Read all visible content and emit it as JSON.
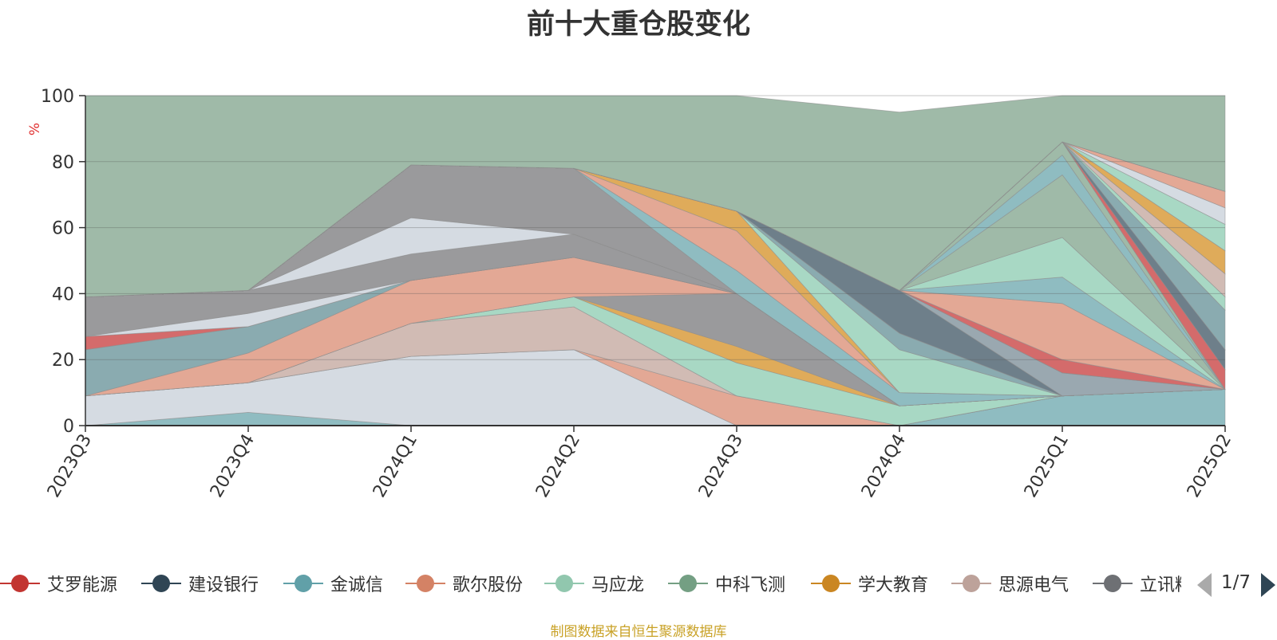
{
  "title": "前十大重仓股变化",
  "ylabel": "%",
  "source_note": "制图数据来自恒生聚源数据库",
  "legend_page": "1/7",
  "chart_data": {
    "type": "area",
    "stacked": true,
    "title": "前十大重仓股变化",
    "ylabel": "%",
    "ylim": [
      0,
      100
    ],
    "yticks": [
      0,
      20,
      40,
      60,
      80,
      100
    ],
    "grid": true,
    "legend_position": "bottom",
    "categories": [
      "2023Q3",
      "2023Q4",
      "2024Q1",
      "2024Q2",
      "2024Q3",
      "2024Q4",
      "2025Q1",
      "2025Q2"
    ],
    "layers": [
      {
        "color": "#8fbcc1",
        "values": [
          0,
          4,
          0,
          0,
          0,
          0,
          9,
          11
        ]
      },
      {
        "color": "#d5dbe2",
        "values": [
          9,
          9,
          21,
          23,
          0,
          0,
          0,
          0
        ]
      },
      {
        "color": "#e3a895",
        "values": [
          0,
          0,
          0,
          0,
          9,
          0,
          0,
          0
        ]
      },
      {
        "color": "#d1bbb4",
        "values": [
          0,
          0,
          10,
          13,
          0,
          0,
          0,
          0
        ]
      },
      {
        "color": "#a8d8c4",
        "values": [
          0,
          0,
          0,
          3,
          10,
          6,
          0,
          0
        ]
      },
      {
        "color": "#dfab5a",
        "values": [
          0,
          0,
          0,
          0,
          5,
          0,
          0,
          0
        ]
      },
      {
        "color": "#9a9a9c",
        "values": [
          0,
          0,
          0,
          0,
          16,
          0,
          0,
          0
        ]
      },
      {
        "color": "#e3a895",
        "values": [
          0,
          9,
          13,
          12,
          0,
          0,
          0,
          0
        ]
      },
      {
        "color": "#8aabb0",
        "values": [
          14,
          8,
          0,
          0,
          0,
          0,
          0,
          0
        ]
      },
      {
        "color": "#d46b6b",
        "values": [
          4,
          0,
          0,
          0,
          0,
          0,
          0,
          0
        ]
      },
      {
        "color": "#d5dbe2",
        "values": [
          0,
          4,
          0,
          0,
          0,
          0,
          0,
          0
        ]
      },
      {
        "color": "#9a9a9c",
        "values": [
          12,
          7,
          8,
          7,
          0,
          0,
          0,
          0
        ]
      },
      {
        "color": "#d5dbe2",
        "values": [
          0,
          0,
          11,
          0,
          0,
          0,
          0,
          0
        ]
      },
      {
        "color": "#9a9a9c",
        "values": [
          0,
          0,
          16,
          20,
          0,
          0,
          0,
          0
        ]
      },
      {
        "color": "#8fbcc1",
        "values": [
          0,
          0,
          0,
          0,
          7,
          4,
          0,
          0
        ]
      },
      {
        "color": "#e3a895",
        "values": [
          0,
          0,
          0,
          0,
          12,
          0,
          0,
          0
        ]
      },
      {
        "color": "#dfab5a",
        "values": [
          0,
          0,
          0,
          0,
          6,
          0,
          0,
          0
        ]
      },
      {
        "color": "#a8d8c4",
        "values": [
          0,
          0,
          0,
          0,
          0,
          13,
          0,
          0
        ]
      },
      {
        "color": "#8aabb0",
        "values": [
          0,
          0,
          0,
          0,
          0,
          5,
          0,
          0
        ]
      },
      {
        "color": "#6e7f8a",
        "values": [
          0,
          0,
          0,
          0,
          0,
          13,
          0,
          0
        ]
      },
      {
        "color": "#9aa8b0",
        "values": [
          0,
          0,
          0,
          0,
          0,
          0,
          7,
          0
        ]
      },
      {
        "color": "#8fbcc1",
        "values": [
          0,
          0,
          0,
          0,
          0,
          0,
          0,
          0
        ]
      },
      {
        "color": "#d46b6b",
        "values": [
          0,
          0,
          0,
          0,
          0,
          0,
          4,
          0
        ]
      },
      {
        "color": "#e3a895",
        "values": [
          0,
          0,
          0,
          0,
          0,
          0,
          17,
          0
        ]
      },
      {
        "color": "#8fbcc1",
        "values": [
          0,
          0,
          0,
          0,
          0,
          0,
          8,
          0
        ]
      },
      {
        "color": "#a8d8c4",
        "values": [
          0,
          0,
          0,
          0,
          0,
          0,
          12,
          0
        ]
      },
      {
        "color": "#9fbaa8",
        "values": [
          0,
          0,
          0,
          0,
          0,
          0,
          19,
          0
        ]
      },
      {
        "color": "#8fbcc1",
        "values": [
          0,
          0,
          0,
          0,
          0,
          0,
          6,
          0
        ]
      },
      {
        "color": "#9fbaa8",
        "values": [
          0,
          0,
          0,
          0,
          0,
          0,
          4,
          0
        ]
      },
      {
        "color": "#d46b6b",
        "values": [
          0,
          0,
          0,
          0,
          0,
          0,
          0,
          6
        ]
      },
      {
        "color": "#6e7f8a",
        "values": [
          0,
          0,
          0,
          0,
          0,
          0,
          0,
          6
        ]
      },
      {
        "color": "#8aabb0",
        "values": [
          0,
          0,
          0,
          0,
          0,
          0,
          0,
          12
        ]
      },
      {
        "color": "#a8d8c4",
        "values": [
          0,
          0,
          0,
          0,
          0,
          0,
          0,
          4
        ]
      },
      {
        "color": "#d1bbb4",
        "values": [
          0,
          0,
          0,
          0,
          0,
          0,
          0,
          7
        ]
      },
      {
        "color": "#dfab5a",
        "values": [
          0,
          0,
          0,
          0,
          0,
          0,
          0,
          7
        ]
      },
      {
        "color": "#a8d8c4",
        "values": [
          0,
          0,
          0,
          0,
          0,
          0,
          0,
          8
        ]
      },
      {
        "color": "#d5dbe2",
        "values": [
          0,
          0,
          0,
          0,
          0,
          0,
          0,
          5
        ]
      },
      {
        "color": "#e3a895",
        "values": [
          0,
          0,
          0,
          0,
          0,
          0,
          0,
          5
        ]
      },
      {
        "color": "#e3a895",
        "values": [
          0,
          0,
          0,
          0,
          0,
          0,
          0,
          0
        ]
      },
      {
        "color": "#8fbcc1",
        "values": [
          0,
          0,
          0,
          0,
          0,
          0,
          0,
          0
        ]
      },
      {
        "color": "#d46b6b",
        "values": [
          0,
          0,
          0,
          0,
          0,
          0,
          0,
          0
        ]
      },
      {
        "color": "#9fbaa8",
        "values": [
          61,
          59,
          21,
          25,
          35,
          54,
          14,
          29
        ]
      }
    ],
    "legend": [
      {
        "label": "艾罗能源",
        "color": "#c23531"
      },
      {
        "label": "建设银行",
        "color": "#2f4554"
      },
      {
        "label": "金诚信",
        "color": "#61a0a8"
      },
      {
        "label": "歌尔股份",
        "color": "#d48265"
      },
      {
        "label": "马应龙",
        "color": "#91c7ae"
      },
      {
        "label": "中科飞测",
        "color": "#749f83"
      },
      {
        "label": "学大教育",
        "color": "#ca8622"
      },
      {
        "label": "思源电气",
        "color": "#bda29a"
      },
      {
        "label": "立讯精密",
        "color": "#6e7074"
      }
    ]
  }
}
